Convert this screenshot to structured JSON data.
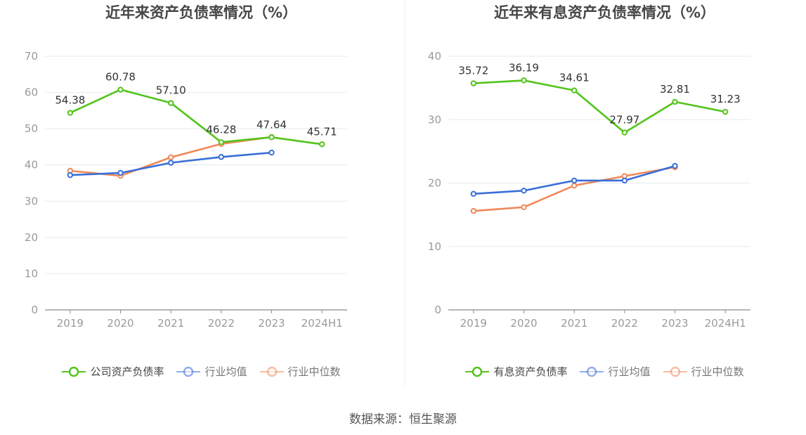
{
  "footer": {
    "source": "数据来源：恒生聚源"
  },
  "chart_data": [
    {
      "type": "line",
      "title": "近年来资产负债率情况（%）",
      "categories": [
        "2019",
        "2020",
        "2021",
        "2022",
        "2023",
        "2024H1"
      ],
      "ylim": [
        0,
        70
      ],
      "yticks": [
        0,
        10,
        20,
        30,
        40,
        50,
        60,
        70
      ],
      "series": [
        {
          "name": "公司资产负债率",
          "color": "#52c41a",
          "show_labels": true,
          "values": [
            54.38,
            60.78,
            57.1,
            46.28,
            47.64,
            45.71
          ],
          "labels": [
            "54.38",
            "60.78",
            "57.10",
            "46.28",
            "47.64",
            "45.71"
          ]
        },
        {
          "name": "行业均值",
          "color": "#3a6fd8",
          "show_labels": false,
          "values": [
            37.2,
            37.8,
            40.6,
            42.2,
            43.4,
            null
          ]
        },
        {
          "name": "行业中位数",
          "color": "#f0895a",
          "show_labels": false,
          "values": [
            38.4,
            37.0,
            42.1,
            45.8,
            47.7,
            null
          ]
        }
      ]
    },
    {
      "type": "line",
      "title": "近年来有息资产负债率情况（%）",
      "categories": [
        "2019",
        "2020",
        "2021",
        "2022",
        "2023",
        "2024H1"
      ],
      "ylim": [
        0,
        40
      ],
      "yticks": [
        0,
        10,
        20,
        30,
        40
      ],
      "series": [
        {
          "name": "有息资产负债率",
          "color": "#52c41a",
          "show_labels": true,
          "values": [
            35.72,
            36.19,
            34.61,
            27.97,
            32.81,
            31.23
          ],
          "labels": [
            "35.72",
            "36.19",
            "34.61",
            "27.97",
            "32.81",
            "31.23"
          ]
        },
        {
          "name": "行业均值",
          "color": "#3a6fd8",
          "show_labels": false,
          "values": [
            18.3,
            18.8,
            20.4,
            20.4,
            22.7,
            null
          ]
        },
        {
          "name": "行业中位数",
          "color": "#f0895a",
          "show_labels": false,
          "values": [
            15.6,
            16.2,
            19.6,
            21.1,
            22.5,
            null
          ]
        }
      ]
    }
  ]
}
